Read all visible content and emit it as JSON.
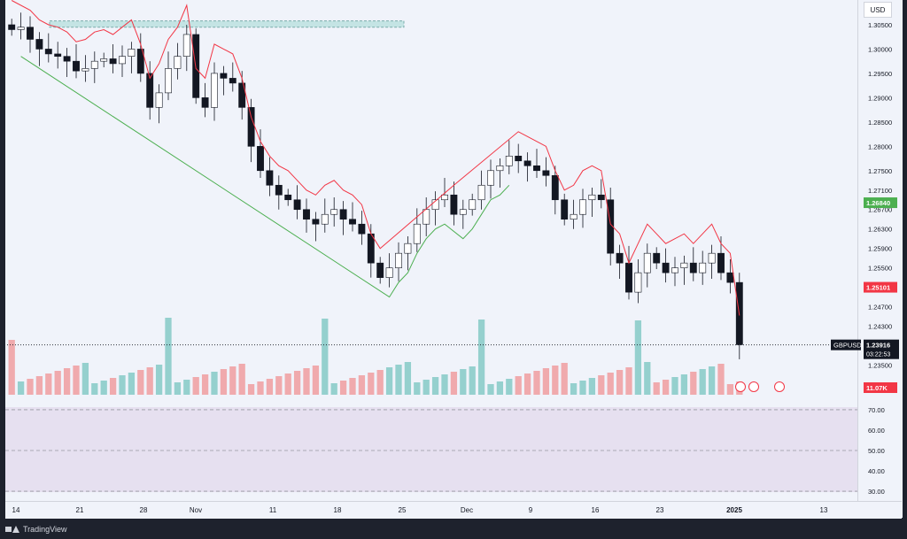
{
  "footer": {
    "brand": "TradingView"
  },
  "chart_data": {
    "type": "candlestick",
    "symbol": "GBPUSD",
    "currency": "USD",
    "timeframe_labels": [
      "14",
      "21",
      "28",
      "Nov",
      "11",
      "18",
      "25",
      "Dec",
      "9",
      "16",
      "23",
      "2025",
      "13"
    ],
    "price_ticks": [
      "1.30500",
      "1.30000",
      "1.29500",
      "1.29000",
      "1.28500",
      "1.28000",
      "1.27500",
      "1.27100",
      "1.26700",
      "1.26300",
      "1.25900",
      "1.25500",
      "1.24700",
      "1.24300",
      "1.23500"
    ],
    "price_range": [
      1.23,
      1.309
    ],
    "last_price": {
      "label": "GBPUSD",
      "value": "1.23916",
      "countdown": "03:22:53",
      "color": "#131722"
    },
    "tags": [
      {
        "name": "supertrend-up-level",
        "value": "1.26840",
        "color": "#4caf50"
      },
      {
        "name": "supertrend-down-level",
        "value": "1.25101",
        "color": "#f23645"
      },
      {
        "name": "volume",
        "value": "11.07K",
        "color": "#f23645"
      }
    ],
    "rsi_ticks": [
      "70.00",
      "60.00",
      "50.00",
      "40.00",
      "30.00"
    ],
    "rsi_range": [
      27,
      73
    ],
    "rsi_levels": [
      70,
      50,
      30
    ],
    "close_series": [
      1.304,
      1.3045,
      1.302,
      1.3,
      1.299,
      1.2985,
      1.2975,
      1.2955,
      1.296,
      1.2975,
      1.298,
      1.297,
      1.2985,
      1.3,
      1.295,
      1.288,
      1.291,
      1.296,
      1.2985,
      1.303,
      1.29,
      1.288,
      1.295,
      1.294,
      1.293,
      1.288,
      1.28,
      1.275,
      1.272,
      1.27,
      1.269,
      1.267,
      1.265,
      1.264,
      1.266,
      1.267,
      1.265,
      1.264,
      1.262,
      1.256,
      1.253,
      1.255,
      1.258,
      1.26,
      1.264,
      1.267,
      1.269,
      1.27,
      1.266,
      1.267,
      1.269,
      1.272,
      1.275,
      1.276,
      1.278,
      1.277,
      1.276,
      1.275,
      1.274,
      1.269,
      1.265,
      1.266,
      1.269,
      1.27,
      1.269,
      1.258,
      1.256,
      1.25,
      1.254,
      1.258,
      1.256,
      1.254,
      1.255,
      1.256,
      1.254,
      1.256,
      1.258,
      1.254,
      1.252,
      1.2392
    ],
    "resistance_zone": {
      "low": 1.3045,
      "high": 1.3058,
      "start_index": 6,
      "end_index": 60
    },
    "colors": {
      "up": "#26a69a",
      "down": "#ef5350",
      "st_up": "#4caf50",
      "st_down": "#f23645"
    }
  }
}
